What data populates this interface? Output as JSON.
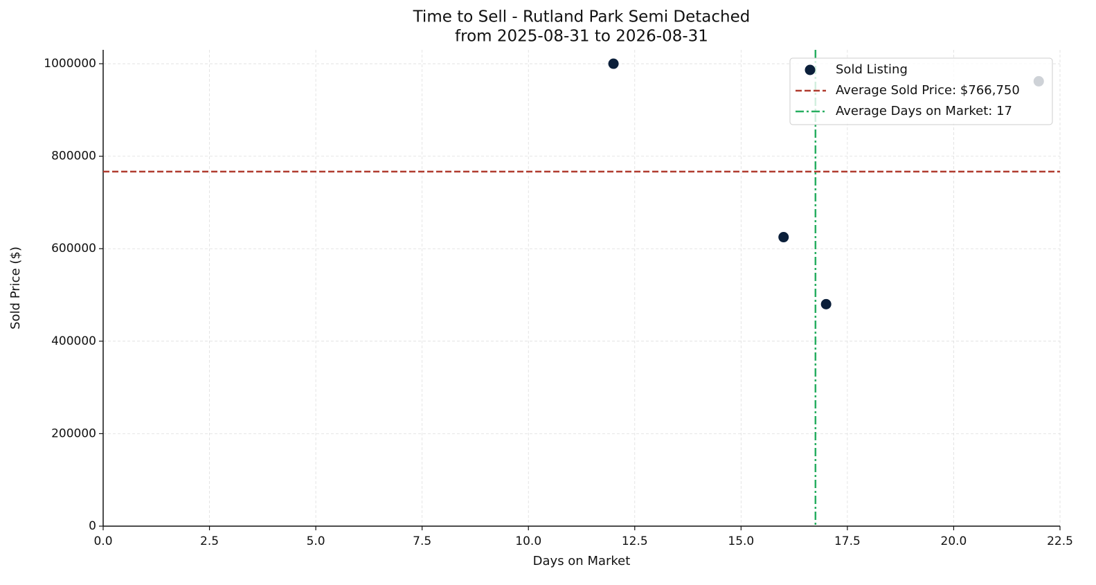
{
  "chart_data": {
    "type": "scatter",
    "title": "Time to Sell - Rutland Park Semi Detached",
    "subtitle": "from 2025-08-31 to 2026-08-31",
    "x_label": "Days on Market",
    "y_label": "Sold Price ($)",
    "x": [
      12,
      16,
      17,
      22
    ],
    "series": [
      {
        "name": "Sold Listing",
        "color": "#0b1f3a",
        "values": [
          1000000,
          625000,
          480000,
          962000
        ]
      }
    ],
    "hlines": [
      {
        "value": 766750,
        "label": "Average Sold Price: $766,750",
        "color": "#b03a2e"
      }
    ],
    "vlines": [
      {
        "value": 16.75,
        "label": "Average Days on Market: 17",
        "color": "#27ae60"
      }
    ],
    "xlim": [
      0,
      22.5
    ],
    "ylim": [
      0,
      1030000
    ],
    "xticks": [
      {
        "value": 0,
        "label": "0.0"
      },
      2.5,
      {
        "value": 5,
        "label": "5.0"
      },
      7.5,
      {
        "value": 10,
        "label": "10.0"
      },
      12.5,
      {
        "value": 15,
        "label": "15.0"
      },
      17.5,
      {
        "value": 20,
        "label": "20.0"
      },
      22.5
    ],
    "yticks": [
      0,
      200000,
      400000,
      600000,
      800000,
      1000000
    ],
    "grid": true,
    "legend": "upper right"
  }
}
